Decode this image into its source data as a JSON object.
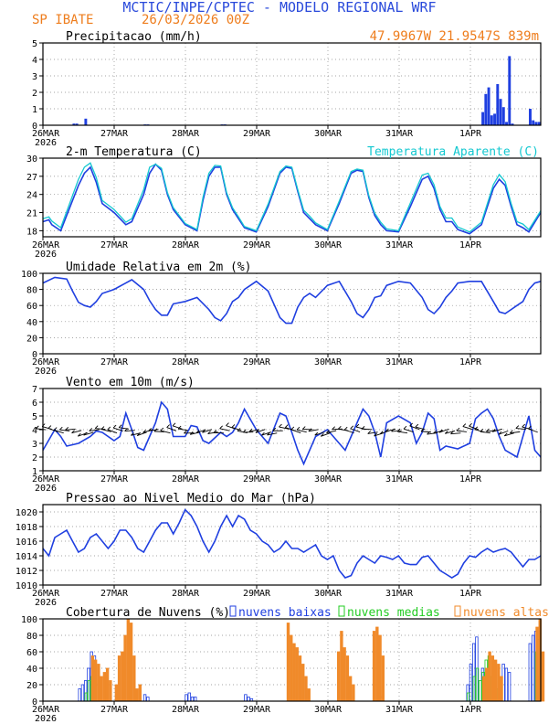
{
  "header": {
    "title": "MCTIC/INPE/CPTEC - MODELO REGIONAL WRF",
    "location": "SP IBATE",
    "run": "26/03/2026 00Z",
    "coords": "47.9967W 21.9547S 839m"
  },
  "colors": {
    "blue": "#1f3fe0",
    "cyan": "#14c8d0",
    "orange": "#f08a2a",
    "green": "#22cc22",
    "title_blue": "#2a4adb",
    "title_orange": "#ee7d1d"
  },
  "x_ticks": [
    "26MAR",
    "27MAR",
    "28MAR",
    "29MAR",
    "30MAR",
    "31MAR",
    "1APR"
  ],
  "x_year": "2026",
  "chart_data": [
    {
      "id": "precip",
      "type": "bar",
      "title": "Precipitacao (mm/h)",
      "ylim": [
        0,
        5
      ],
      "yticks": [
        0,
        1,
        2,
        3,
        4,
        5
      ],
      "hours": [
        0,
        168
      ],
      "series": [
        {
          "name": "Precipitacao",
          "color": "#1f3fe0",
          "hours": [
            10,
            11,
            14,
            34,
            35,
            60,
            61,
            148,
            149,
            150,
            151,
            152,
            153,
            154,
            155,
            156,
            157,
            158,
            159,
            160,
            161,
            162,
            163,
            164,
            165,
            166,
            167
          ],
          "values": [
            0.1,
            0.1,
            0.4,
            0.05,
            0.05,
            0.05,
            0.05,
            0.8,
            1.9,
            2.3,
            0.6,
            0.7,
            2.5,
            1.6,
            1.1,
            0.2,
            4.2,
            0.1,
            0.0,
            0.0,
            0.0,
            0.0,
            0.0,
            1.0,
            0.3,
            0.2,
            0.2
          ]
        }
      ]
    },
    {
      "id": "temp",
      "type": "line",
      "title": "2-m Temperatura (C)",
      "legend": "Temperatura Aparente (C)",
      "ylim": [
        17,
        30
      ],
      "yticks": [
        18,
        21,
        24,
        27,
        30
      ],
      "hours": [
        0,
        168
      ],
      "series": [
        {
          "name": "2-m Temperatura (C)",
          "color": "#1f3fe0",
          "hours": [
            0,
            2,
            3,
            6,
            10,
            12,
            14,
            16,
            18,
            20,
            24,
            28,
            30,
            34,
            36,
            38,
            40,
            42,
            44,
            48,
            52,
            54,
            56,
            58,
            60,
            62,
            64,
            66,
            68,
            72,
            76,
            80,
            82,
            84,
            86,
            88,
            90,
            92,
            96,
            100,
            104,
            106,
            108,
            110,
            112,
            114,
            116,
            120,
            124,
            128,
            130,
            132,
            134,
            136,
            138,
            140,
            144,
            148,
            152,
            154,
            156,
            158,
            160,
            162,
            164,
            168
          ],
          "values": [
            19.5,
            19.8,
            19.0,
            18.0,
            23.0,
            25.5,
            27.5,
            28.5,
            26.0,
            22.5,
            21.0,
            19.0,
            19.5,
            24.0,
            27.5,
            29.0,
            28.0,
            24.0,
            21.5,
            19.0,
            18.0,
            23.0,
            27.0,
            28.5,
            28.5,
            24.0,
            21.5,
            20.0,
            18.5,
            17.8,
            22.0,
            27.5,
            28.5,
            28.3,
            24.5,
            21.0,
            20.0,
            19.0,
            18.0,
            22.5,
            27.5,
            28.0,
            27.8,
            23.5,
            20.5,
            19.0,
            18.0,
            17.8,
            22.0,
            26.5,
            27.0,
            25.0,
            21.5,
            19.5,
            19.5,
            18.2,
            17.5,
            19.0,
            25.0,
            26.5,
            25.5,
            22.0,
            19.0,
            18.5,
            17.8,
            21.0
          ]
        },
        {
          "name": "Temperatura Aparente (C)",
          "color": "#14c8d0",
          "hours": [
            0,
            2,
            3,
            6,
            10,
            12,
            14,
            16,
            18,
            20,
            24,
            28,
            30,
            34,
            36,
            38,
            40,
            42,
            44,
            48,
            52,
            54,
            56,
            58,
            60,
            62,
            64,
            66,
            68,
            72,
            76,
            80,
            82,
            84,
            86,
            88,
            90,
            92,
            96,
            100,
            104,
            106,
            108,
            110,
            112,
            114,
            116,
            120,
            124,
            128,
            130,
            132,
            134,
            136,
            138,
            140,
            144,
            148,
            152,
            154,
            156,
            158,
            160,
            162,
            164,
            168
          ],
          "values": [
            20.0,
            20.3,
            19.6,
            18.5,
            23.8,
            26.5,
            28.5,
            29.2,
            26.8,
            23.0,
            21.5,
            19.4,
            20.0,
            24.8,
            28.5,
            29.0,
            28.3,
            24.3,
            21.8,
            19.2,
            18.2,
            23.5,
            27.5,
            28.8,
            28.7,
            24.3,
            21.8,
            20.3,
            18.7,
            18.0,
            22.4,
            27.8,
            28.7,
            28.5,
            24.8,
            21.4,
            20.4,
            19.3,
            18.2,
            22.9,
            27.8,
            28.2,
            28.0,
            23.8,
            20.9,
            19.4,
            18.3,
            18.0,
            22.6,
            27.2,
            27.5,
            25.6,
            22.0,
            20.1,
            20.1,
            18.6,
            17.8,
            19.4,
            25.6,
            27.3,
            26.1,
            22.5,
            19.5,
            19.1,
            18.2,
            21.3
          ]
        }
      ]
    },
    {
      "id": "rh",
      "type": "line",
      "title": "Umidade Relativa em 2m (%)",
      "ylim": [
        0,
        100
      ],
      "yticks": [
        0,
        20,
        40,
        60,
        80,
        100
      ],
      "hours": [
        0,
        168
      ],
      "series": [
        {
          "name": "Umidade Relativa",
          "color": "#1f3fe0",
          "hours": [
            0,
            4,
            8,
            10,
            12,
            14,
            16,
            18,
            20,
            24,
            28,
            30,
            34,
            36,
            38,
            40,
            42,
            44,
            48,
            52,
            56,
            58,
            60,
            62,
            64,
            66,
            68,
            72,
            76,
            80,
            82,
            84,
            86,
            88,
            90,
            92,
            96,
            100,
            104,
            106,
            108,
            110,
            112,
            114,
            116,
            120,
            124,
            128,
            130,
            132,
            134,
            136,
            138,
            140,
            144,
            148,
            152,
            154,
            156,
            158,
            160,
            162,
            164,
            166,
            168
          ],
          "values": [
            88,
            95,
            93,
            78,
            64,
            60,
            58,
            65,
            75,
            80,
            88,
            92,
            80,
            66,
            55,
            48,
            48,
            62,
            65,
            70,
            55,
            45,
            41,
            50,
            65,
            70,
            80,
            90,
            78,
            45,
            38,
            38,
            58,
            70,
            75,
            70,
            85,
            90,
            65,
            50,
            45,
            55,
            70,
            72,
            85,
            90,
            88,
            70,
            55,
            50,
            58,
            70,
            78,
            88,
            90,
            90,
            65,
            52,
            50,
            55,
            60,
            65,
            80,
            88,
            90
          ]
        }
      ]
    },
    {
      "id": "wind",
      "type": "line+barbs",
      "title": "Vento em 10m (m/s)",
      "ylim": [
        1,
        7
      ],
      "yticks": [
        1,
        2,
        3,
        4,
        5,
        6,
        7
      ],
      "hours": [
        0,
        168
      ],
      "series": [
        {
          "name": "Vento",
          "color": "#1f3fe0",
          "hours": [
            0,
            4,
            6,
            8,
            12,
            16,
            18,
            20,
            24,
            26,
            28,
            30,
            32,
            34,
            36,
            38,
            40,
            42,
            44,
            48,
            50,
            52,
            54,
            56,
            58,
            60,
            62,
            64,
            66,
            68,
            72,
            76,
            80,
            82,
            84,
            86,
            88,
            92,
            96,
            100,
            102,
            104,
            106,
            108,
            110,
            112,
            114,
            116,
            120,
            124,
            126,
            128,
            130,
            132,
            134,
            136,
            140,
            144,
            146,
            148,
            150,
            152,
            154,
            156,
            160,
            164,
            166,
            168
          ],
          "values": [
            2.5,
            4.0,
            3.5,
            2.8,
            3.0,
            3.5,
            3.9,
            3.8,
            3.2,
            3.5,
            5.2,
            4.0,
            2.7,
            2.5,
            3.5,
            4.5,
            6.0,
            5.5,
            3.5,
            3.5,
            4.3,
            4.2,
            3.2,
            3.0,
            3.4,
            3.8,
            3.5,
            3.8,
            4.5,
            5.5,
            4.0,
            3.0,
            5.2,
            5.0,
            3.8,
            2.5,
            1.5,
            3.5,
            4.0,
            3.0,
            2.5,
            3.5,
            4.5,
            5.5,
            5.0,
            3.8,
            2.0,
            4.5,
            5.0,
            4.5,
            3.0,
            3.8,
            5.2,
            4.8,
            2.5,
            2.8,
            2.6,
            3.0,
            4.8,
            5.2,
            5.5,
            4.8,
            3.5,
            2.5,
            2.0,
            5.0,
            2.5,
            2.0
          ]
        }
      ]
    },
    {
      "id": "pres",
      "type": "line",
      "title": "Pressao ao Nivel Medio do Mar (hPa)",
      "ylim": [
        1010,
        1021
      ],
      "yticks": [
        1010,
        1012,
        1014,
        1016,
        1018,
        1020
      ],
      "hours": [
        0,
        168
      ],
      "series": [
        {
          "name": "Pressao",
          "color": "#1f3fe0",
          "hours": [
            0,
            2,
            4,
            6,
            8,
            10,
            12,
            14,
            16,
            18,
            20,
            22,
            24,
            26,
            28,
            30,
            32,
            34,
            36,
            38,
            40,
            42,
            44,
            46,
            48,
            50,
            52,
            54,
            56,
            58,
            60,
            62,
            64,
            66,
            68,
            70,
            72,
            74,
            76,
            78,
            80,
            82,
            84,
            86,
            88,
            90,
            92,
            94,
            96,
            98,
            100,
            102,
            104,
            106,
            108,
            110,
            112,
            114,
            116,
            118,
            120,
            122,
            124,
            126,
            128,
            130,
            132,
            134,
            136,
            138,
            140,
            142,
            144,
            146,
            148,
            150,
            152,
            154,
            156,
            158,
            160,
            162,
            164,
            166,
            168
          ],
          "values": [
            1015.0,
            1014.0,
            1016.5,
            1017.0,
            1017.5,
            1016.0,
            1014.5,
            1015.0,
            1016.5,
            1017.0,
            1016.0,
            1015.0,
            1016.0,
            1017.5,
            1017.5,
            1016.5,
            1015.0,
            1014.5,
            1016.0,
            1017.5,
            1018.5,
            1018.5,
            1017.0,
            1018.5,
            1020.3,
            1019.5,
            1018.0,
            1016.0,
            1014.5,
            1016.0,
            1018.0,
            1019.5,
            1018.0,
            1019.5,
            1019.0,
            1017.5,
            1017.0,
            1016.0,
            1015.5,
            1014.5,
            1015.0,
            1016.0,
            1015.0,
            1015.0,
            1014.5,
            1015.0,
            1015.5,
            1014.0,
            1013.5,
            1014.0,
            1012.0,
            1011.0,
            1011.3,
            1013.0,
            1014.0,
            1013.5,
            1013.0,
            1014.0,
            1013.8,
            1013.5,
            1014.0,
            1013.0,
            1012.8,
            1012.8,
            1013.8,
            1014.0,
            1013.0,
            1012.0,
            1011.5,
            1011.0,
            1011.5,
            1013.0,
            1014.0,
            1013.8,
            1014.5,
            1015.0,
            1014.5,
            1014.8,
            1015.0,
            1014.5,
            1013.5,
            1012.5,
            1013.5,
            1013.5,
            1014.0
          ]
        }
      ]
    },
    {
      "id": "clouds",
      "type": "bar",
      "title": "Cobertura de Nuvens (%)",
      "ylim": [
        0,
        100
      ],
      "yticks": [
        0,
        20,
        40,
        60,
        80,
        100
      ],
      "hours": [
        0,
        168
      ],
      "legend": [
        "nuvens baixas",
        "nuvens medias",
        "nuvens altas"
      ],
      "series": [
        {
          "name": "nuvens baixas",
          "color": "#1f3fe0",
          "hours": [
            12,
            13,
            14,
            15,
            16,
            17,
            18,
            34,
            35,
            48,
            49,
            50,
            51,
            68,
            69,
            70,
            114,
            143,
            144,
            145,
            146,
            148,
            149,
            150,
            155,
            156,
            157,
            164,
            165,
            166,
            167
          ],
          "values": [
            15,
            20,
            25,
            40,
            60,
            55,
            20,
            8,
            5,
            8,
            10,
            5,
            5,
            8,
            5,
            3,
            5,
            20,
            45,
            70,
            78,
            40,
            20,
            10,
            45,
            40,
            35,
            70,
            80,
            85,
            75
          ]
        },
        {
          "name": "nuvens medias",
          "color": "#22cc22",
          "hours": [
            14,
            15,
            16,
            143,
            145,
            146,
            147,
            148,
            149,
            150,
            151,
            152,
            153,
            166,
            167
          ],
          "values": [
            10,
            25,
            30,
            10,
            30,
            40,
            25,
            35,
            50,
            55,
            30,
            25,
            15,
            60,
            30
          ]
        },
        {
          "name": "nuvens altas",
          "color": "#f08a2a",
          "hours": [
            16,
            17,
            18,
            19,
            20,
            21,
            22,
            24,
            25,
            26,
            27,
            28,
            29,
            30,
            31,
            32,
            82,
            83,
            84,
            85,
            86,
            87,
            88,
            89,
            99,
            100,
            101,
            102,
            103,
            104,
            111,
            112,
            113,
            114,
            148,
            149,
            150,
            151,
            152,
            153,
            154,
            166,
            167,
            168
          ],
          "values": [
            55,
            50,
            45,
            30,
            35,
            40,
            25,
            20,
            55,
            60,
            80,
            100,
            95,
            55,
            15,
            20,
            95,
            80,
            70,
            65,
            55,
            45,
            30,
            15,
            60,
            85,
            65,
            55,
            30,
            20,
            85,
            90,
            80,
            55,
            30,
            40,
            60,
            55,
            50,
            45,
            30,
            90,
            100,
            60
          ]
        }
      ]
    }
  ]
}
